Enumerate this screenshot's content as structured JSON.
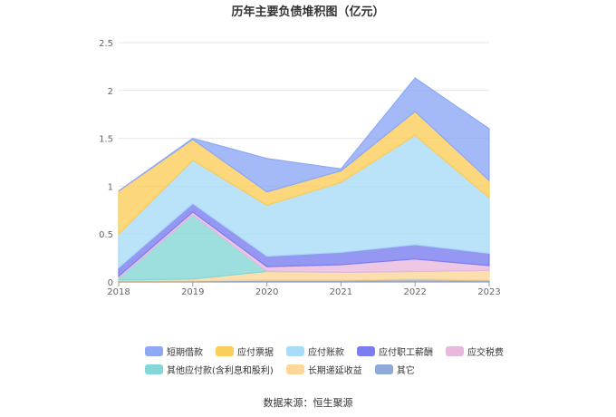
{
  "source_text": "数据来源：恒生聚源",
  "chart_data": {
    "type": "area",
    "stacked": true,
    "title": "历年主要负债堆积图（亿元）",
    "xlabel": "",
    "ylabel": "",
    "categories": [
      "2018",
      "2019",
      "2020",
      "2021",
      "2022",
      "2023"
    ],
    "ylim": [
      0,
      2.5
    ],
    "yticks": [
      "0",
      "0.5",
      "1",
      "1.5",
      "2",
      "2.5"
    ],
    "grid": true,
    "legend_position": "bottom",
    "series": [
      {
        "name": "其它",
        "color": "#8eaadb",
        "values": [
          0.01,
          0.01,
          0.02,
          0.02,
          0.03,
          0.02
        ]
      },
      {
        "name": "长期递延收益",
        "color": "#fdd79a",
        "values": [
          0.01,
          0.02,
          0.09,
          0.08,
          0.08,
          0.1
        ]
      },
      {
        "name": "其他应付款(含利息和股利)",
        "color": "#83d7d6",
        "values": [
          0.02,
          0.67,
          0.0,
          0.0,
          0.0,
          0.0
        ]
      },
      {
        "name": "应交税费",
        "color": "#e8b9dd",
        "values": [
          0.02,
          0.03,
          0.05,
          0.08,
          0.13,
          0.05
        ]
      },
      {
        "name": "应付职工薪酬",
        "color": "#7b7ef0",
        "values": [
          0.09,
          0.09,
          0.11,
          0.13,
          0.15,
          0.13
        ]
      },
      {
        "name": "应付账款",
        "color": "#a9dcf8",
        "values": [
          0.35,
          0.45,
          0.53,
          0.73,
          1.14,
          0.58
        ]
      },
      {
        "name": "应付票据",
        "color": "#fbcd5a",
        "values": [
          0.45,
          0.22,
          0.14,
          0.12,
          0.25,
          0.18
        ]
      },
      {
        "name": "短期借款",
        "color": "#8da8f5",
        "values": [
          0.0,
          0.01,
          0.35,
          0.02,
          0.35,
          0.54
        ]
      }
    ],
    "legend_order": [
      "短期借款",
      "应付票据",
      "应付账款",
      "应付职工薪酬",
      "应交税费",
      "其他应付款(含利息和股利)",
      "长期递延收益",
      "其它"
    ],
    "legend_rows": [
      [
        "短期借款",
        "应付票据",
        "应付账款",
        "应付职工薪酬",
        "应交税费"
      ],
      [
        "其他应付款(含利息和股利)",
        "长期递延收益",
        "其它"
      ]
    ]
  }
}
